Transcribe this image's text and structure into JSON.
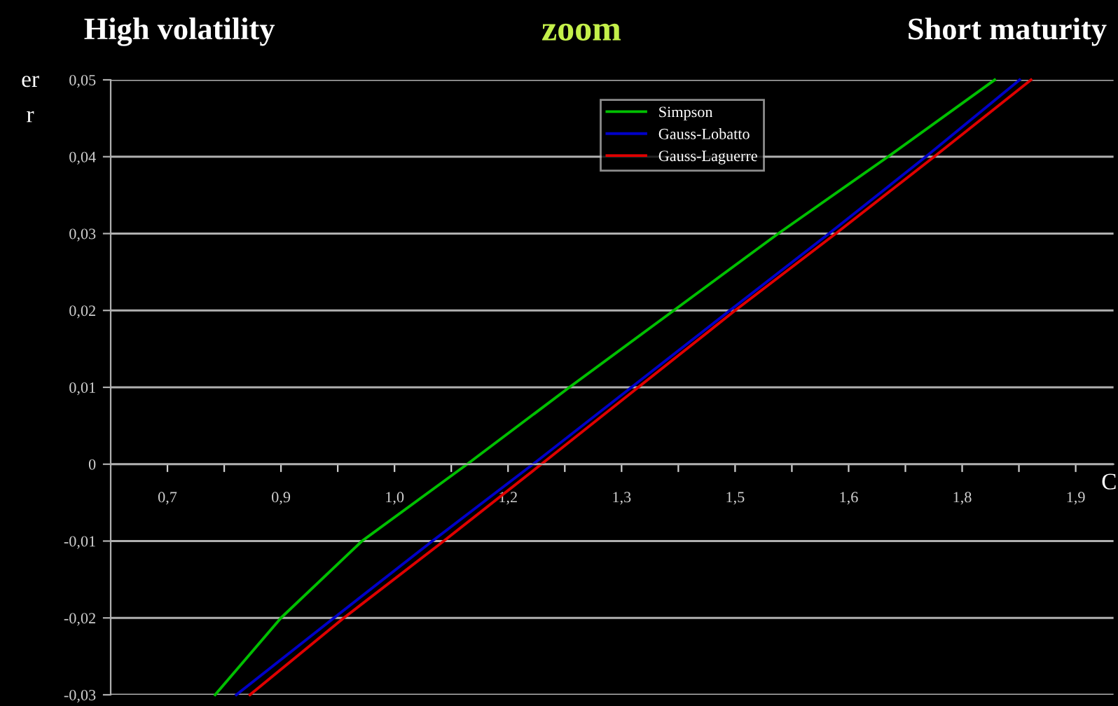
{
  "chart_data": {
    "type": "line",
    "title": "zoom",
    "annotations": [
      "High volatility",
      "Short maturity",
      "er",
      "r",
      "C"
    ],
    "series": [
      {
        "name": "Simpson",
        "color": "#00c000",
        "x": [
          0.763,
          0.85,
          0.957,
          1.096,
          1.231,
          1.369,
          1.507,
          1.652,
          1.793
        ],
        "values": [
          -0.03,
          -0.02,
          -0.01,
          0,
          0.01,
          0.02,
          0.03,
          0.04,
          0.05
        ]
      },
      {
        "name": "Gauss-Lobatto",
        "color": "#0000c8",
        "x": [
          0.791,
          0.92,
          1.05,
          1.183,
          1.313,
          1.443,
          1.574,
          1.702,
          1.826
        ],
        "values": [
          -0.03,
          -0.02,
          -0.01,
          0,
          0.01,
          0.02,
          0.03,
          0.04,
          0.05
        ]
      },
      {
        "name": "Gauss-Laguerre",
        "color": "#e00000",
        "x": [
          0.809,
          0.933,
          1.065,
          1.194,
          1.322,
          1.45,
          1.583,
          1.713,
          1.841
        ],
        "values": [
          -0.03,
          -0.02,
          -0.01,
          0,
          0.01,
          0.02,
          0.03,
          0.04,
          0.05
        ]
      }
    ],
    "xlim": [
      0.625,
      1.95
    ],
    "xticks": [
      {
        "value": 0.7,
        "label": "0,7"
      },
      {
        "value": 0.85,
        "label": "0,9"
      },
      {
        "value": 1.0,
        "label": "1,0"
      },
      {
        "value": 1.15,
        "label": "1,2"
      },
      {
        "value": 1.3,
        "label": "1,3"
      },
      {
        "value": 1.45,
        "label": "1,5"
      },
      {
        "value": 1.6,
        "label": "1,6"
      },
      {
        "value": 1.75,
        "label": "1,8"
      },
      {
        "value": 1.9,
        "label": "1,9"
      },
      {
        "value": 0.775,
        "label": null
      },
      {
        "value": 0.925,
        "label": null
      },
      {
        "value": 1.075,
        "label": null
      },
      {
        "value": 1.225,
        "label": null
      },
      {
        "value": 1.375,
        "label": null
      },
      {
        "value": 1.525,
        "label": null
      },
      {
        "value": 1.675,
        "label": null
      },
      {
        "value": 1.825,
        "label": null
      }
    ],
    "ylim": [
      -0.03,
      0.05
    ],
    "yticks": [
      {
        "value": -0.03,
        "label": "-0,03"
      },
      {
        "value": -0.02,
        "label": "-0,02"
      },
      {
        "value": -0.01,
        "label": "-0,01"
      },
      {
        "value": 0,
        "label": "0"
      },
      {
        "value": 0.01,
        "label": "0,01"
      },
      {
        "value": 0.02,
        "label": "0,02"
      },
      {
        "value": 0.03,
        "label": "0,03"
      },
      {
        "value": 0.04,
        "label": "0,04"
      },
      {
        "value": 0.05,
        "label": "0,05"
      }
    ],
    "grid": "y",
    "legend": "top",
    "marker": "none",
    "line_style": "solid"
  }
}
